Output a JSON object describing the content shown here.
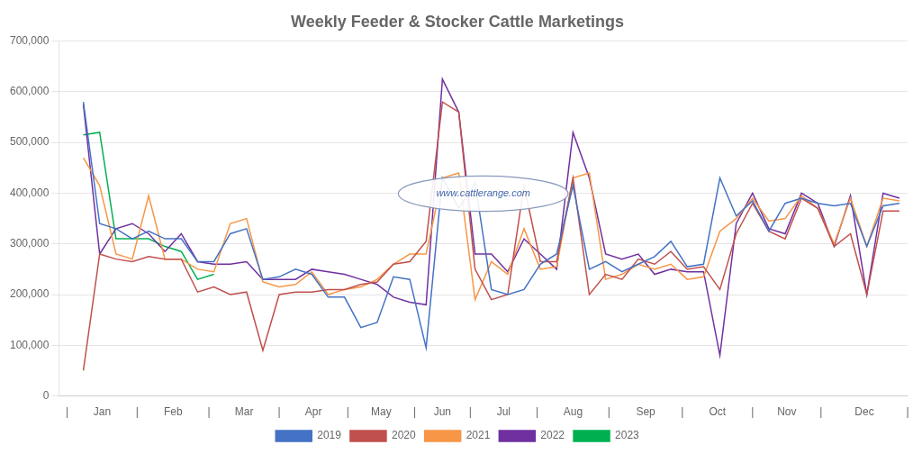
{
  "chart_data": {
    "type": "line",
    "title": "Weekly Feeder & Stocker Cattle Marketings",
    "annotations": [
      "www.cattlerange.com"
    ],
    "x": [
      1,
      2,
      3,
      4,
      5,
      6,
      7,
      8,
      9,
      10,
      11,
      12,
      13,
      14,
      15,
      16,
      17,
      18,
      19,
      20,
      21,
      22,
      23,
      24,
      25,
      26,
      27,
      28,
      29,
      30,
      31,
      32,
      33,
      34,
      35,
      36,
      37,
      38,
      39,
      40,
      41,
      42,
      43,
      44,
      45,
      46,
      47,
      48,
      49,
      50,
      51
    ],
    "series": [
      {
        "name": "2019",
        "color": "#4472C4",
        "values": [
          580000,
          340000,
          330000,
          310000,
          325000,
          310000,
          310000,
          265000,
          265000,
          320000,
          330000,
          230000,
          235000,
          250000,
          240000,
          195000,
          195000,
          135000,
          145000,
          235000,
          230000,
          95000,
          430000,
          370000,
          420000,
          210000,
          200000,
          210000,
          260000,
          280000,
          415000,
          250000,
          265000,
          245000,
          260000,
          275000,
          305000,
          255000,
          260000,
          430000,
          355000,
          385000,
          325000,
          380000,
          390000,
          380000,
          375000,
          380000,
          295000,
          375000,
          380000
        ]
      },
      {
        "name": "2020",
        "color": "#C0504D",
        "values": [
          50000,
          280000,
          270000,
          265000,
          275000,
          270000,
          270000,
          205000,
          215000,
          200000,
          205000,
          90000,
          200000,
          205000,
          205000,
          210000,
          210000,
          220000,
          225000,
          260000,
          265000,
          305000,
          580000,
          560000,
          250000,
          190000,
          200000,
          415000,
          265000,
          265000,
          430000,
          200000,
          240000,
          230000,
          270000,
          260000,
          285000,
          250000,
          255000,
          210000,
          320000,
          380000,
          325000,
          310000,
          390000,
          370000,
          295000,
          320000,
          200000,
          365000,
          365000
        ]
      },
      {
        "name": "2021",
        "color": "#F79646",
        "values": [
          470000,
          415000,
          280000,
          270000,
          395000,
          270000,
          270000,
          250000,
          245000,
          340000,
          350000,
          225000,
          215000,
          220000,
          245000,
          200000,
          210000,
          215000,
          230000,
          260000,
          280000,
          280000,
          430000,
          440000,
          190000,
          265000,
          240000,
          330000,
          250000,
          255000,
          430000,
          440000,
          230000,
          240000,
          260000,
          250000,
          260000,
          230000,
          235000,
          325000,
          350000,
          390000,
          345000,
          350000,
          395000,
          370000,
          300000,
          390000,
          295000,
          390000,
          385000
        ]
      },
      {
        "name": "2022",
        "color": "#7030A0",
        "values": [
          575000,
          280000,
          330000,
          340000,
          320000,
          285000,
          320000,
          265000,
          260000,
          260000,
          265000,
          230000,
          230000,
          230000,
          250000,
          245000,
          240000,
          230000,
          220000,
          195000,
          185000,
          180000,
          625000,
          560000,
          280000,
          280000,
          245000,
          310000,
          280000,
          250000,
          520000,
          430000,
          280000,
          270000,
          280000,
          240000,
          250000,
          245000,
          245000,
          80000,
          340000,
          400000,
          330000,
          320000,
          400000,
          380000,
          295000,
          395000,
          200000,
          400000,
          390000
        ]
      },
      {
        "name": "2023",
        "color": "#00B050",
        "values": [
          515000,
          520000,
          310000,
          310000,
          310000,
          295000,
          285000,
          230000,
          240000,
          null,
          null,
          null,
          null,
          null,
          null,
          null,
          null,
          null,
          null,
          null,
          null,
          null,
          null,
          null,
          null,
          null,
          null,
          null,
          null,
          null,
          null,
          null,
          null,
          null,
          null,
          null,
          null,
          null,
          null,
          null,
          null,
          null,
          null,
          null,
          null,
          null,
          null,
          null,
          null,
          null,
          null
        ]
      }
    ],
    "xlim": [
      -0.5,
      51.5
    ],
    "xticks": [
      {
        "value": 0.0,
        "label": "|"
      },
      {
        "value": 2.15,
        "label": "Jan"
      },
      {
        "value": 4.3,
        "label": "|"
      },
      {
        "value": 6.5,
        "label": "Feb"
      },
      {
        "value": 8.7,
        "label": "|"
      },
      {
        "value": 10.85,
        "label": "Mar"
      },
      {
        "value": 13.0,
        "label": "|"
      },
      {
        "value": 15.1,
        "label": "Apr"
      },
      {
        "value": 17.2,
        "label": "|"
      },
      {
        "value": 19.25,
        "label": "May"
      },
      {
        "value": 21.3,
        "label": "|"
      },
      {
        "value": 23.0,
        "label": "Jun"
      },
      {
        "value": 24.7,
        "label": "|"
      },
      {
        "value": 26.75,
        "label": "Jul"
      },
      {
        "value": 28.8,
        "label": "|"
      },
      {
        "value": 31.0,
        "label": "Aug"
      },
      {
        "value": 33.2,
        "label": "|"
      },
      {
        "value": 35.45,
        "label": "Sep"
      },
      {
        "value": 37.7,
        "label": "|"
      },
      {
        "value": 39.85,
        "label": "Oct"
      },
      {
        "value": 42.0,
        "label": "|"
      },
      {
        "value": 44.1,
        "label": "Nov"
      },
      {
        "value": 46.2,
        "label": "|"
      },
      {
        "value": 48.85,
        "label": "Dec"
      },
      {
        "value": 51.5,
        "label": "|"
      }
    ],
    "ylim": [
      0,
      700000
    ],
    "yticks": [
      0,
      {
        "value": 100000,
        "label": "100,000"
      },
      {
        "value": 200000,
        "label": "200,000"
      },
      {
        "value": 300000,
        "label": "300,000"
      },
      {
        "value": 400000,
        "label": "400,000"
      },
      {
        "value": 500000,
        "label": "500,000"
      },
      {
        "value": 600000,
        "label": "600,000"
      },
      {
        "value": 700000,
        "label": "700,000"
      }
    ],
    "grid": "y",
    "legend": "bottom"
  }
}
